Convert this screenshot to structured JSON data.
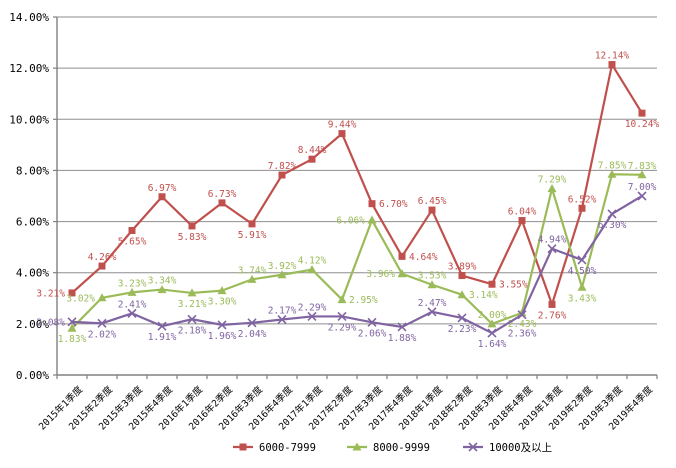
{
  "chart_data": {
    "type": "line",
    "title": "",
    "xlabel": "",
    "ylabel": "",
    "ylim": [
      0,
      14
    ],
    "ytick_step": 2,
    "yticks": [
      "0.00%",
      "2.00%",
      "4.00%",
      "6.00%",
      "8.00%",
      "10.00%",
      "12.00%",
      "14.00%"
    ],
    "grid": "horizontal",
    "legend_position": "bottom-center",
    "data_labels": true,
    "data_label_format": "0.00%",
    "categories": [
      "2015年1季度",
      "2015年2季度",
      "2015年3季度",
      "2015年4季度",
      "2016年1季度",
      "2016年2季度",
      "2016年3季度",
      "2016年4季度",
      "2017年1季度",
      "2017年2季度",
      "2017年3季度",
      "2017年4季度",
      "2018年1季度",
      "2018年2季度",
      "2018年3季度",
      "2018年4季度",
      "2019年1季度",
      "2019年2季度",
      "2019年3季度",
      "2019年4季度"
    ],
    "series": [
      {
        "name": "6000-7999",
        "color": "#C0504D",
        "marker": "square",
        "values": [
          3.21,
          4.26,
          5.65,
          6.97,
          5.83,
          6.73,
          5.91,
          7.82,
          8.44,
          9.44,
          6.7,
          4.64,
          6.45,
          3.89,
          3.55,
          6.04,
          2.76,
          6.52,
          12.14,
          10.24
        ],
        "label_side": [
          "l",
          "u",
          "d",
          "u",
          "d",
          "u",
          "d",
          "u",
          "u",
          "u",
          "r",
          "r",
          "u",
          "u",
          "r",
          "u",
          "d",
          "u",
          "u",
          "d"
        ]
      },
      {
        "name": "8000-9999",
        "color": "#9BBB59",
        "marker": "triangle",
        "values": [
          1.83,
          3.02,
          3.23,
          3.34,
          3.21,
          3.3,
          3.74,
          3.92,
          4.12,
          2.95,
          6.06,
          3.96,
          3.53,
          3.14,
          2.0,
          2.43,
          7.29,
          3.43,
          7.85,
          7.83
        ],
        "label_side": [
          "d",
          "l",
          "u",
          "u",
          "d",
          "d",
          "u",
          "u",
          "u",
          "r",
          "l",
          "l",
          "u",
          "r",
          "u",
          "d",
          "u",
          "d",
          "u",
          "u"
        ]
      },
      {
        "name": "10000及以上",
        "color": "#8064A2",
        "marker": "x",
        "values": [
          2.08,
          2.02,
          2.41,
          1.91,
          2.18,
          1.96,
          2.04,
          2.17,
          2.29,
          2.29,
          2.06,
          1.88,
          2.47,
          2.23,
          1.64,
          2.36,
          4.94,
          4.5,
          6.3,
          7.0
        ],
        "label_side": [
          "l",
          "d",
          "u",
          "d",
          "d",
          "d",
          "d",
          "u",
          "u",
          "d",
          "d",
          "d",
          "u",
          "d",
          "d",
          "dd",
          "u",
          "d",
          "d",
          "u"
        ]
      }
    ]
  },
  "colors": {
    "background": "#FFFFFF",
    "gridline": "#8E8E8E",
    "axis": "#808080",
    "axis_text": "#000000",
    "legend_text": "#000000"
  }
}
